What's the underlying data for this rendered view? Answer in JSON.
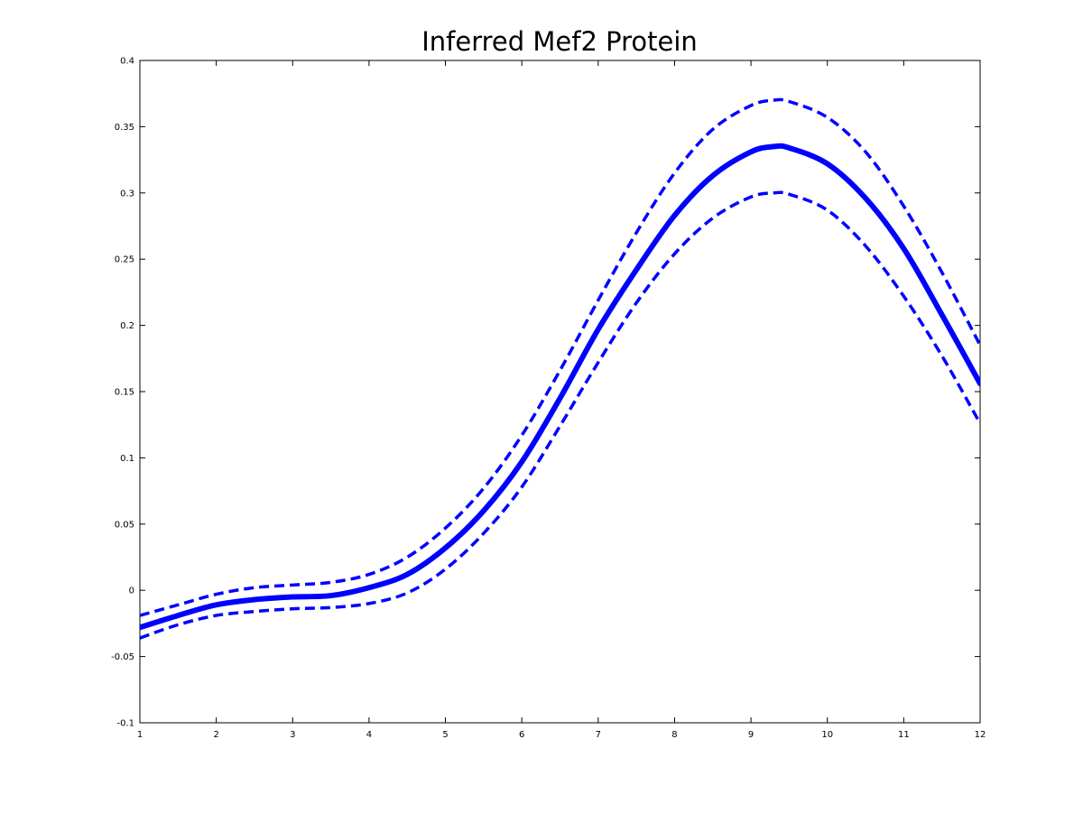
{
  "chart_data": {
    "type": "line",
    "title": "Inferred Mef2 Protein",
    "xlabel": "",
    "ylabel": "",
    "xlim": [
      1,
      12
    ],
    "ylim": [
      -0.1,
      0.4
    ],
    "x_ticks": [
      1,
      2,
      3,
      4,
      5,
      6,
      7,
      8,
      9,
      10,
      11,
      12
    ],
    "x_tick_labels": [
      "1",
      "2",
      "3",
      "4",
      "5",
      "6",
      "7",
      "8",
      "9",
      "10",
      "11",
      "12"
    ],
    "y_ticks": [
      -0.1,
      -0.05,
      0,
      0.05,
      0.1,
      0.15,
      0.2,
      0.25,
      0.3,
      0.35,
      0.4
    ],
    "y_tick_labels": [
      "-0.1",
      "-0.05",
      "0",
      "0.05",
      "0.1",
      "0.15",
      "0.2",
      "0.25",
      "0.3",
      "0.35",
      "0.4"
    ],
    "grid": false,
    "legend": "none",
    "line_color": "#0000ff",
    "series": [
      {
        "style": "solid",
        "x": [
          1,
          1.5,
          2,
          2.5,
          3,
          3.5,
          4,
          4.5,
          5,
          5.5,
          6,
          6.5,
          7,
          7.5,
          8,
          8.5,
          9,
          9.3,
          9.5,
          10,
          10.5,
          11,
          11.5,
          12
        ],
        "y": [
          -0.028,
          -0.019,
          -0.011,
          -0.007,
          -0.005,
          -0.004,
          0.002,
          0.012,
          0.032,
          0.06,
          0.097,
          0.145,
          0.197,
          0.242,
          0.283,
          0.313,
          0.331,
          0.335,
          0.334,
          0.322,
          0.296,
          0.258,
          0.208,
          0.156
        ]
      },
      {
        "style": "dashed",
        "x": [
          1,
          1.5,
          2,
          2.5,
          3,
          3.5,
          4,
          4.5,
          5,
          5.5,
          6,
          6.5,
          7,
          7.5,
          8,
          8.5,
          9,
          9.3,
          9.5,
          10,
          10.5,
          11,
          11.5,
          12
        ],
        "y": [
          -0.019,
          -0.011,
          -0.003,
          0.002,
          0.004,
          0.006,
          0.012,
          0.025,
          0.047,
          0.077,
          0.117,
          0.166,
          0.219,
          0.27,
          0.315,
          0.348,
          0.366,
          0.37,
          0.369,
          0.357,
          0.331,
          0.29,
          0.24,
          0.185
        ]
      },
      {
        "style": "dashed",
        "x": [
          1,
          1.5,
          2,
          2.5,
          3,
          3.5,
          4,
          4.5,
          5,
          5.5,
          6,
          6.5,
          7,
          7.5,
          8,
          8.5,
          9,
          9.3,
          9.5,
          10,
          10.5,
          11,
          11.5,
          12
        ],
        "y": [
          -0.036,
          -0.026,
          -0.019,
          -0.016,
          -0.014,
          -0.013,
          -0.01,
          -0.002,
          0.016,
          0.043,
          0.078,
          0.124,
          0.172,
          0.217,
          0.254,
          0.281,
          0.297,
          0.3,
          0.299,
          0.287,
          0.26,
          0.222,
          0.177,
          0.126
        ]
      }
    ]
  }
}
